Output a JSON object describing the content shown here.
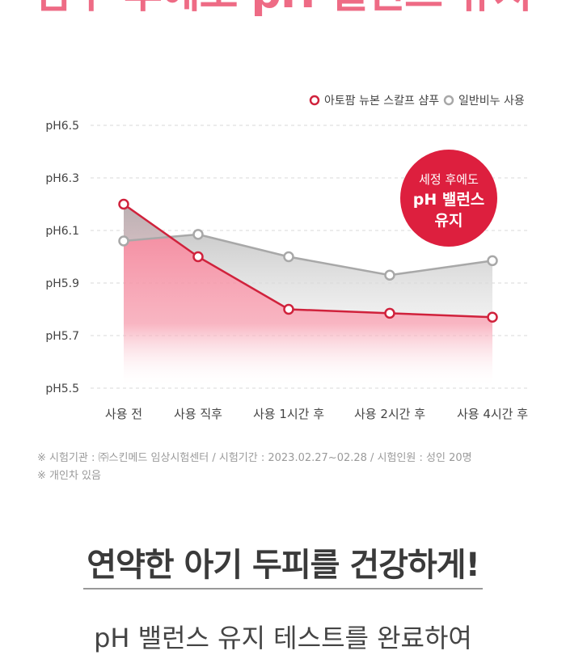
{
  "top_title": "샴푸 후에도 pH 밸런스 유지",
  "chart_data": {
    "type": "area",
    "categories": [
      "사용 전",
      "사용 직후",
      "사용 1시간 후",
      "사용 2시간 후",
      "사용 4시간 후"
    ],
    "y_tick_labels": [
      "pH6.5",
      "pH6.3",
      "pH6.1",
      "pH5.9",
      "pH5.7",
      "pH5.5"
    ],
    "y_ticks": [
      6.5,
      6.3,
      6.1,
      5.9,
      5.7,
      5.5
    ],
    "ylim": [
      5.5,
      6.5
    ],
    "grid": true,
    "legend_position": "top-right",
    "series": [
      {
        "name": "아토팜 뉴본 스칼프 샴푸",
        "values": [
          6.2,
          6.0,
          5.8,
          5.785,
          5.77
        ],
        "color": "#d0223c",
        "fill": "#f27b92"
      },
      {
        "name": "일반비누 사용",
        "values": [
          6.06,
          6.085,
          6.0,
          5.93,
          5.985
        ],
        "color": "#a8a8a8",
        "fill": "#bdbdbd"
      }
    ],
    "badge": {
      "line1": "세정 후에도",
      "line2": "pH 밸런스",
      "line3": "유지",
      "color": "#dd1f3e"
    }
  },
  "notes": [
    "※ 시험기관 : ㈜스킨메드 임상시험센터 / 시험기간 : 2023.02.27~02.28 / 시험인원 : 성인 20명",
    "※ 개인차 있음"
  ],
  "heading": "연약한 아기 두피를 건강하게!",
  "subheading": "pH 밸런스 유지 테스트를 완료하여"
}
